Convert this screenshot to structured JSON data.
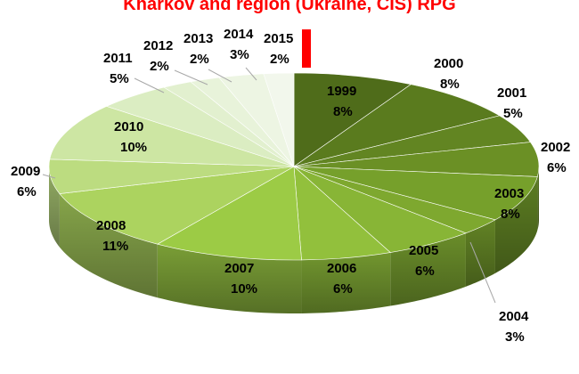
{
  "chart_data": {
    "type": "pie",
    "title": "Kharkov and region (Ukraine, CIS) RPG",
    "slices": [
      {
        "label": "1999",
        "pct_label": "8%",
        "value": 8,
        "color": "#4f6c1a"
      },
      {
        "label": "2000",
        "pct_label": "8%",
        "value": 8,
        "color": "#5a7b1e"
      },
      {
        "label": "2001",
        "pct_label": "5%",
        "value": 5,
        "color": "#628522"
      },
      {
        "label": "2002",
        "pct_label": "6%",
        "value": 6,
        "color": "#6b9025"
      },
      {
        "label": "2003",
        "pct_label": "8%",
        "value": 8,
        "color": "#76a02b"
      },
      {
        "label": "2004",
        "pct_label": "3%",
        "value": 3,
        "color": "#7ea82f"
      },
      {
        "label": "2005",
        "pct_label": "6%",
        "value": 6,
        "color": "#88b536"
      },
      {
        "label": "2006",
        "pct_label": "6%",
        "value": 6,
        "color": "#92c03c"
      },
      {
        "label": "2007",
        "pct_label": "10%",
        "value": 10,
        "color": "#9ccb45"
      },
      {
        "label": "2008",
        "pct_label": "11%",
        "value": 11,
        "color": "#acd35f"
      },
      {
        "label": "2009",
        "pct_label": "6%",
        "value": 6,
        "color": "#bcdc80"
      },
      {
        "label": "2010",
        "pct_label": "10%",
        "value": 10,
        "color": "#cde6a3"
      },
      {
        "label": "2011",
        "pct_label": "5%",
        "value": 5,
        "color": "#dbedc2"
      },
      {
        "label": "2012",
        "pct_label": "2%",
        "value": 2,
        "color": "#e2f0cf"
      },
      {
        "label": "2013",
        "pct_label": "2%",
        "value": 2,
        "color": "#e8f3da"
      },
      {
        "label": "2014",
        "pct_label": "3%",
        "value": 3,
        "color": "#edf5e3"
      },
      {
        "label": "2015",
        "pct_label": "2%",
        "value": 2,
        "color": "#f2f7ec"
      }
    ],
    "accent_color": "#ff0000"
  }
}
